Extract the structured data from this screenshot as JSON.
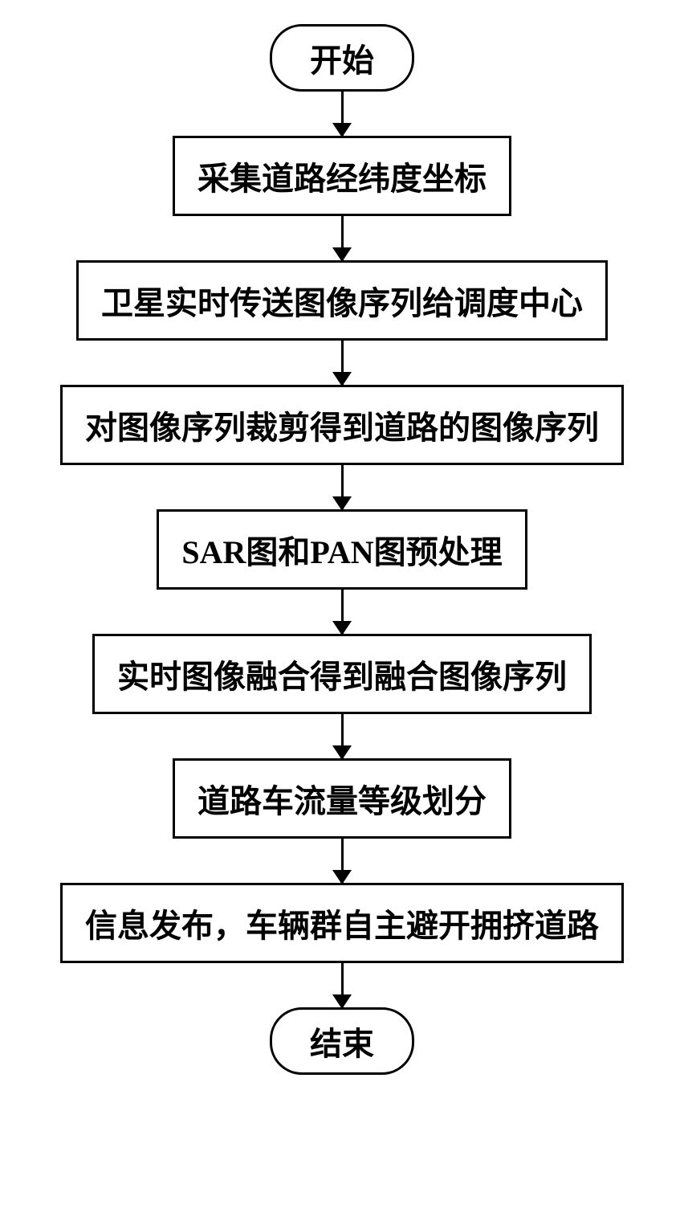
{
  "flowchart": {
    "type": "flowchart",
    "direction": "top-to-bottom",
    "background_color": "#ffffff",
    "border_color": "#000000",
    "border_width": 3,
    "font_size": 40,
    "font_weight": "bold",
    "arrow_color": "#000000",
    "terminal_border_radius": 40,
    "nodes": [
      {
        "id": "start",
        "type": "terminal",
        "label": "开始"
      },
      {
        "id": "step1",
        "type": "process",
        "label": "采集道路经纬度坐标"
      },
      {
        "id": "step2",
        "type": "process",
        "label": "卫星实时传送图像序列给调度中心"
      },
      {
        "id": "step3",
        "type": "process",
        "label": "对图像序列裁剪得到道路的图像序列"
      },
      {
        "id": "step4",
        "type": "process",
        "label": "SAR图和PAN图预处理"
      },
      {
        "id": "step5",
        "type": "process",
        "label": "实时图像融合得到融合图像序列"
      },
      {
        "id": "step6",
        "type": "process",
        "label": "道路车流量等级划分"
      },
      {
        "id": "step7",
        "type": "process",
        "label": "信息发布，车辆群自主避开拥挤道路"
      },
      {
        "id": "end",
        "type": "terminal",
        "label": "结束"
      }
    ],
    "edges": [
      {
        "from": "start",
        "to": "step1"
      },
      {
        "from": "step1",
        "to": "step2"
      },
      {
        "from": "step2",
        "to": "step3"
      },
      {
        "from": "step3",
        "to": "step4"
      },
      {
        "from": "step4",
        "to": "step5"
      },
      {
        "from": "step5",
        "to": "step6"
      },
      {
        "from": "step6",
        "to": "step7"
      },
      {
        "from": "step7",
        "to": "end"
      }
    ]
  }
}
